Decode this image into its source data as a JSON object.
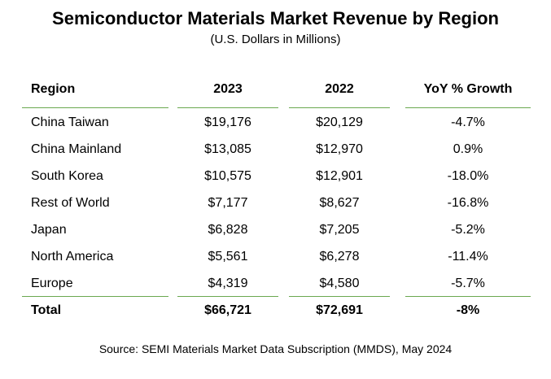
{
  "title": "Semiconductor Materials Market Revenue by Region",
  "subtitle": "(U.S. Dollars in Millions)",
  "source": "Source: SEMI Materials Market Data Subscription (MMDS), May 2024",
  "colors": {
    "rule": "#6aa84f"
  },
  "chart_data": {
    "type": "table",
    "columns": [
      "Region",
      "2023",
      "2022",
      "YoY % Growth"
    ],
    "rows": [
      [
        "China Taiwan",
        "$19,176",
        "$20,129",
        "-4.7%"
      ],
      [
        "China Mainland",
        "$13,085",
        "$12,970",
        "0.9%"
      ],
      [
        "South Korea",
        "$10,575",
        "$12,901",
        "-18.0%"
      ],
      [
        "Rest of World",
        "$7,177",
        "$8,627",
        "-16.8%"
      ],
      [
        "Japan",
        "$6,828",
        "$7,205",
        "-5.2%"
      ],
      [
        "North America",
        "$5,561",
        "$6,278",
        "-11.4%"
      ],
      [
        "Europe",
        "$4,319",
        "$4,580",
        "-5.7%"
      ]
    ],
    "total": [
      "Total",
      "$66,721",
      "$72,691",
      "-8%"
    ]
  }
}
